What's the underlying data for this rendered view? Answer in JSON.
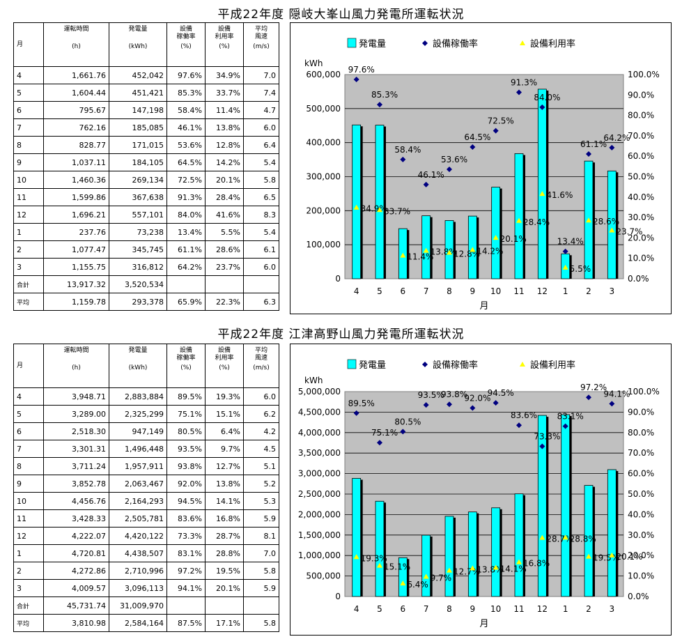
{
  "colors": {
    "bar": "#00ffff",
    "bar_stroke": "#000000",
    "operation_marker": "#000080",
    "utilization_marker": "#ffff00",
    "plot_bg": "#c0c0c0"
  },
  "headers": {
    "month": "月",
    "hours": "運転時間",
    "hours_unit": "(h)",
    "energy": "発電量",
    "energy_unit": "(kWh)",
    "op_rate_1": "設備",
    "op_rate_2": "稼働率",
    "op_rate_unit": "(%)",
    "util_rate_1": "設備",
    "util_rate_2": "利用率",
    "util_rate_unit": "(%)",
    "wind_1": "平均",
    "wind_2": "風速",
    "wind_unit": "(m/s)"
  },
  "sections": [
    {
      "title": "平成22年度 隠岐大峯山風力発電所運転状況",
      "rows": [
        [
          "4",
          "1,661.76",
          "452,042",
          "97.6%",
          "34.9%",
          "7.0"
        ],
        [
          "5",
          "1,604.44",
          "451,421",
          "85.3%",
          "33.7%",
          "7.4"
        ],
        [
          "6",
          "795.67",
          "147,198",
          "58.4%",
          "11.4%",
          "4.7"
        ],
        [
          "7",
          "762.16",
          "185,085",
          "46.1%",
          "13.8%",
          "6.0"
        ],
        [
          "8",
          "828.77",
          "171,015",
          "53.6%",
          "12.8%",
          "6.4"
        ],
        [
          "9",
          "1,037.11",
          "184,105",
          "64.5%",
          "14.2%",
          "5.4"
        ],
        [
          "10",
          "1,460.36",
          "269,134",
          "72.5%",
          "20.1%",
          "5.8"
        ],
        [
          "11",
          "1,599.86",
          "367,638",
          "91.3%",
          "28.4%",
          "6.5"
        ],
        [
          "12",
          "1,696.21",
          "557,101",
          "84.0%",
          "41.6%",
          "8.3"
        ],
        [
          "1",
          "237.76",
          "73,238",
          "13.4%",
          "5.5%",
          "5.4"
        ],
        [
          "2",
          "1,077.47",
          "345,745",
          "61.1%",
          "28.6%",
          "6.1"
        ],
        [
          "3",
          "1,155.75",
          "316,812",
          "64.2%",
          "23.7%",
          "6.0"
        ]
      ],
      "total": [
        "合計",
        "13,917.32",
        "3,520,534",
        "",
        "",
        ""
      ],
      "average": [
        "平均",
        "1,159.78",
        "293,378",
        "65.9%",
        "22.3%",
        "6.3"
      ]
    },
    {
      "title": "平成22年度 江津高野山風力発電所運転状況",
      "rows": [
        [
          "4",
          "3,948.71",
          "2,883,884",
          "89.5%",
          "19.3%",
          "6.0"
        ],
        [
          "5",
          "3,289.00",
          "2,325,299",
          "75.1%",
          "15.1%",
          "6.2"
        ],
        [
          "6",
          "2,518.30",
          "947,149",
          "80.5%",
          "6.4%",
          "4.2"
        ],
        [
          "7",
          "3,301.31",
          "1,496,448",
          "93.5%",
          "9.7%",
          "4.5"
        ],
        [
          "8",
          "3,711.24",
          "1,957,911",
          "93.8%",
          "12.7%",
          "5.1"
        ],
        [
          "9",
          "3,852.78",
          "2,063,467",
          "92.0%",
          "13.8%",
          "5.2"
        ],
        [
          "10",
          "4,456.76",
          "2,164,293",
          "94.5%",
          "14.1%",
          "5.3"
        ],
        [
          "11",
          "3,428.33",
          "2,505,781",
          "83.6%",
          "16.8%",
          "5.9"
        ],
        [
          "12",
          "4,222.07",
          "4,420,122",
          "73.3%",
          "28.7%",
          "8.1"
        ],
        [
          "1",
          "4,720.81",
          "4,438,507",
          "83.1%",
          "28.8%",
          "7.0"
        ],
        [
          "2",
          "4,272.86",
          "2,710,996",
          "97.2%",
          "19.5%",
          "5.8"
        ],
        [
          "3",
          "4,009.57",
          "3,096,113",
          "94.1%",
          "20.1%",
          "5.9"
        ]
      ],
      "total": [
        "合計",
        "45,731.74",
        "31,009,970",
        "",
        "",
        ""
      ],
      "average": [
        "平均",
        "3,810.98",
        "2,584,164",
        "87.5%",
        "17.1%",
        "5.8"
      ]
    }
  ],
  "chart_data": [
    {
      "type": "bar",
      "title": "",
      "categories": [
        "4",
        "5",
        "6",
        "7",
        "8",
        "9",
        "10",
        "11",
        "12",
        "1",
        "2",
        "3"
      ],
      "xlabel": "月",
      "ylabel": "kWh",
      "ylim": [
        0,
        600000
      ],
      "yticks": [
        "0",
        "100,000",
        "200,000",
        "300,000",
        "400,000",
        "500,000",
        "600,000"
      ],
      "y2lim": [
        0,
        100
      ],
      "y2ticks": [
        "0.0%",
        "10.0%",
        "20.0%",
        "30.0%",
        "40.0%",
        "50.0%",
        "60.0%",
        "70.0%",
        "80.0%",
        "90.0%",
        "100.0%"
      ],
      "legend": [
        "発電量",
        "設備稼働率",
        "設備利用率"
      ],
      "legend_position": "top",
      "grid": true,
      "series": [
        {
          "name": "発電量",
          "axis": "left",
          "values": [
            452042,
            451421,
            147198,
            185085,
            171015,
            184105,
            269134,
            367638,
            557101,
            73238,
            345745,
            316812
          ]
        },
        {
          "name": "設備稼働率",
          "axis": "right",
          "values": [
            97.6,
            85.3,
            58.4,
            46.1,
            53.6,
            64.5,
            72.5,
            91.3,
            84.0,
            13.4,
            61.1,
            64.2
          ],
          "labels": [
            "97.6%",
            "85.3%",
            "58.4%",
            "46.1%",
            "53.6%",
            "64.5%",
            "72.5%",
            "91.3%",
            "84.0%",
            "13.4%",
            "61.1%",
            "64.2%"
          ]
        },
        {
          "name": "設備利用率",
          "axis": "right",
          "values": [
            34.9,
            33.7,
            11.4,
            13.8,
            12.8,
            14.2,
            20.1,
            28.4,
            41.6,
            5.5,
            28.6,
            23.7
          ],
          "labels": [
            "34.9%",
            "33.7%",
            "11.4%",
            "13.8%",
            "12.8%",
            "14.2%",
            "20.1%",
            "28.4%",
            "41.6%",
            "5.5%",
            "28.6%",
            "23.7%"
          ]
        }
      ]
    },
    {
      "type": "bar",
      "title": "",
      "categories": [
        "4",
        "5",
        "6",
        "7",
        "8",
        "9",
        "10",
        "11",
        "12",
        "1",
        "2",
        "3"
      ],
      "xlabel": "月",
      "ylabel": "kWh",
      "ylim": [
        0,
        5000000
      ],
      "yticks": [
        "0",
        "500,000",
        "1,000,000",
        "1,500,000",
        "2,000,000",
        "2,500,000",
        "3,000,000",
        "3,500,000",
        "4,000,000",
        "4,500,000",
        "5,000,000"
      ],
      "y2lim": [
        0,
        100
      ],
      "y2ticks": [
        "0.0%",
        "10.0%",
        "20.0%",
        "30.0%",
        "40.0%",
        "50.0%",
        "60.0%",
        "70.0%",
        "80.0%",
        "90.0%",
        "100.0%"
      ],
      "legend": [
        "発電量",
        "設備稼働率",
        "設備利用率"
      ],
      "legend_position": "top",
      "grid": true,
      "series": [
        {
          "name": "発電量",
          "axis": "left",
          "values": [
            2883884,
            2325299,
            947149,
            1496448,
            1957911,
            2063467,
            2164293,
            2505781,
            4420122,
            4438507,
            2710996,
            3096113
          ]
        },
        {
          "name": "設備稼働率",
          "axis": "right",
          "values": [
            89.5,
            75.1,
            80.5,
            93.5,
            93.8,
            92.0,
            94.5,
            83.6,
            73.3,
            83.1,
            97.2,
            94.1
          ],
          "labels": [
            "89.5%",
            "75.1%",
            "80.5%",
            "93.5%",
            "93.8%",
            "92.0%",
            "94.5%",
            "83.6%",
            "73.3%",
            "83.1%",
            "97.2%",
            "94.1%"
          ]
        },
        {
          "name": "設備利用率",
          "axis": "right",
          "values": [
            19.3,
            15.1,
            6.4,
            9.7,
            12.7,
            13.8,
            14.1,
            16.8,
            28.7,
            28.8,
            19.5,
            20.1
          ],
          "labels": [
            "19.3%",
            "15.1%",
            "6.4%",
            "9.7%",
            "12.7%",
            "13.8%",
            "14.1%",
            "16.8%",
            "28.7%",
            "28.8%",
            "19.5%",
            "20.1%"
          ]
        }
      ]
    }
  ]
}
